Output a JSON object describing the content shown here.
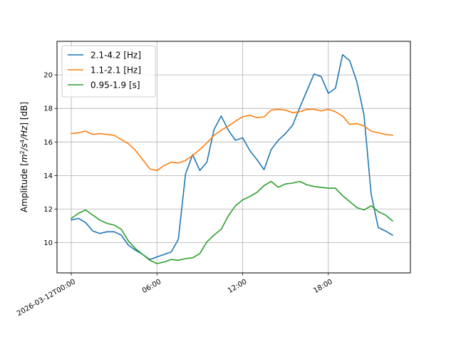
{
  "chart_data": {
    "type": "line",
    "title": "",
    "xlabel": "",
    "ylabel": "Amplitude [m²/s⁴/Hz] [dB]",
    "ylabel_parts": {
      "pre": "Amplitude [",
      "m": "m",
      "sup1": "2",
      "s": "/s",
      "sup2": "4",
      "hz": "/Hz",
      "post": "] [dB]"
    },
    "x_unit": "hours",
    "xlim": [
      -1.0,
      23.75
    ],
    "ylim": [
      8.2,
      22.0
    ],
    "grid": true,
    "legend_position": "top-left",
    "x_ticks": [
      {
        "value": 0,
        "label": "2026-03-12T00:00"
      },
      {
        "value": 6,
        "label": "06:00"
      },
      {
        "value": 12,
        "label": "12:00"
      },
      {
        "value": 18,
        "label": "18:00"
      }
    ],
    "y_ticks": [
      10,
      12,
      14,
      16,
      18,
      20
    ],
    "x": [
      0,
      0.5,
      1,
      1.5,
      2,
      2.5,
      3,
      3.5,
      4,
      4.5,
      5,
      5.5,
      6,
      6.5,
      7,
      7.5,
      8,
      8.5,
      9,
      9.5,
      10,
      10.5,
      11,
      11.5,
      12,
      12.5,
      13,
      13.5,
      14,
      14.5,
      15,
      15.5,
      16,
      16.5,
      17,
      17.5,
      18,
      18.5,
      19,
      19.5,
      20,
      20.5,
      21,
      21.5,
      22,
      22.5
    ],
    "series": [
      {
        "name": "2.1-4.2 [Hz]",
        "color": "#1f77b4",
        "values": [
          11.35,
          11.45,
          11.2,
          10.7,
          10.55,
          10.65,
          10.65,
          10.45,
          9.85,
          9.55,
          9.3,
          9.0,
          9.15,
          9.3,
          9.45,
          10.2,
          14.1,
          15.25,
          14.3,
          14.8,
          16.75,
          17.55,
          16.7,
          16.1,
          16.25,
          15.5,
          14.95,
          14.35,
          15.55,
          16.1,
          16.5,
          17.0,
          18.05,
          19.05,
          20.05,
          19.9,
          18.9,
          19.2,
          21.2,
          20.85,
          19.6,
          17.6,
          12.9,
          10.9,
          10.7,
          10.45
        ]
      },
      {
        "name": "1.1-2.1 [Hz]",
        "color": "#ff7f0e",
        "values": [
          16.5,
          16.55,
          16.65,
          16.45,
          16.5,
          16.45,
          16.4,
          16.15,
          15.9,
          15.5,
          14.95,
          14.4,
          14.3,
          14.6,
          14.8,
          14.75,
          14.9,
          15.2,
          15.55,
          15.95,
          16.4,
          16.7,
          16.95,
          17.25,
          17.5,
          17.6,
          17.45,
          17.5,
          17.9,
          17.95,
          17.9,
          17.75,
          17.8,
          17.95,
          17.95,
          17.85,
          17.95,
          17.8,
          17.55,
          17.05,
          17.1,
          16.95,
          16.65,
          16.55,
          16.45,
          16.4
        ]
      },
      {
        "name": "0.95-1.9 [s]",
        "color": "#2ca02c",
        "values": [
          11.45,
          11.75,
          11.95,
          11.65,
          11.35,
          11.15,
          11.05,
          10.8,
          10.1,
          9.65,
          9.3,
          8.95,
          8.75,
          8.85,
          9.0,
          8.95,
          9.05,
          9.1,
          9.35,
          10.05,
          10.45,
          10.8,
          11.6,
          12.2,
          12.55,
          12.75,
          13.0,
          13.4,
          13.65,
          13.3,
          13.5,
          13.55,
          13.65,
          13.45,
          13.35,
          13.3,
          13.25,
          13.25,
          12.8,
          12.45,
          12.1,
          11.95,
          12.2,
          11.85,
          11.65,
          11.3
        ]
      }
    ]
  }
}
